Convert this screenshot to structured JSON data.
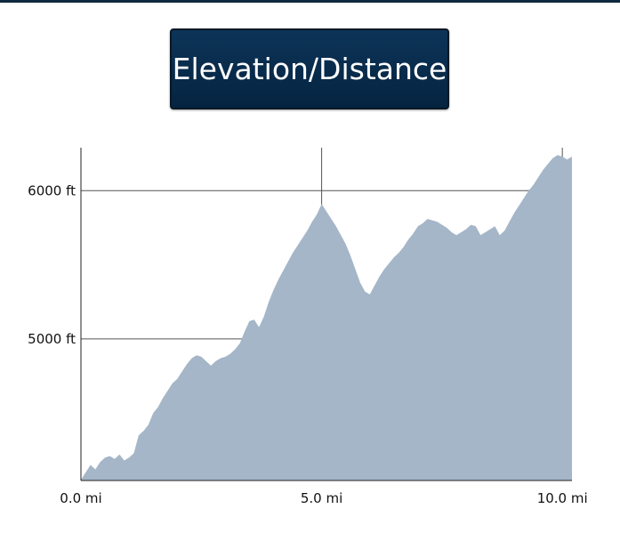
{
  "title": "Elevation/Distance",
  "chart_data": {
    "type": "area",
    "title": "Elevation/Distance",
    "xlabel": "",
    "ylabel": "",
    "x_unit": "mi",
    "y_unit": "ft",
    "xlim": [
      0,
      10.2
    ],
    "ylim": [
      4045,
      6290
    ],
    "x_ticks": [
      {
        "value": 0,
        "label": "0.0 mi"
      },
      {
        "value": 5,
        "label": "5.0 mi"
      },
      {
        "value": 10,
        "label": "10.0 mi"
      }
    ],
    "y_ticks": [
      {
        "value": 5000,
        "label": "5000 ft"
      },
      {
        "value": 6000,
        "label": "6000 ft"
      }
    ],
    "grid": true,
    "fill_color": "#a4b6c8",
    "grid_color": "#555555",
    "series": [
      {
        "x": [
          0,
          0.1,
          0.2,
          0.3,
          0.4,
          0.5,
          0.6,
          0.7,
          0.8,
          0.9,
          1.0,
          1.1,
          1.2,
          1.3,
          1.4,
          1.5,
          1.6,
          1.7,
          1.8,
          1.9,
          2.0,
          2.1,
          2.2,
          2.3,
          2.4,
          2.5,
          2.6,
          2.7,
          2.8,
          2.9,
          3.0,
          3.1,
          3.2,
          3.3,
          3.4,
          3.5,
          3.6,
          3.7,
          3.8,
          3.9,
          4.0,
          4.1,
          4.2,
          4.3,
          4.4,
          4.5,
          4.6,
          4.7,
          4.8,
          4.9,
          5.0,
          5.1,
          5.2,
          5.3,
          5.4,
          5.5,
          5.6,
          5.7,
          5.8,
          5.9,
          6.0,
          6.1,
          6.2,
          6.3,
          6.4,
          6.5,
          6.6,
          6.7,
          6.8,
          6.9,
          7.0,
          7.1,
          7.2,
          7.3,
          7.4,
          7.5,
          7.6,
          7.7,
          7.8,
          7.9,
          8.0,
          8.1,
          8.2,
          8.3,
          8.4,
          8.5,
          8.6,
          8.7,
          8.8,
          8.9,
          9.0,
          9.1,
          9.2,
          9.3,
          9.4,
          9.5,
          9.6,
          9.7,
          9.8,
          9.9,
          10.0,
          10.1,
          10.2
        ],
        "values": [
          4050,
          4100,
          4150,
          4120,
          4170,
          4200,
          4210,
          4190,
          4220,
          4180,
          4200,
          4230,
          4350,
          4380,
          4420,
          4500,
          4540,
          4600,
          4650,
          4700,
          4730,
          4780,
          4830,
          4870,
          4890,
          4880,
          4850,
          4820,
          4850,
          4870,
          4880,
          4900,
          4930,
          4970,
          5050,
          5120,
          5130,
          5080,
          5150,
          5250,
          5330,
          5400,
          5460,
          5520,
          5580,
          5630,
          5680,
          5730,
          5790,
          5840,
          5910,
          5860,
          5810,
          5760,
          5700,
          5640,
          5560,
          5470,
          5380,
          5320,
          5300,
          5360,
          5420,
          5470,
          5510,
          5550,
          5580,
          5620,
          5670,
          5710,
          5760,
          5780,
          5810,
          5800,
          5790,
          5770,
          5750,
          5720,
          5700,
          5720,
          5740,
          5770,
          5760,
          5700,
          5720,
          5740,
          5760,
          5700,
          5730,
          5790,
          5850,
          5900,
          5950,
          6000,
          6040,
          6090,
          6140,
          6180,
          6220,
          6240,
          6230,
          6210,
          6230
        ]
      }
    ]
  }
}
